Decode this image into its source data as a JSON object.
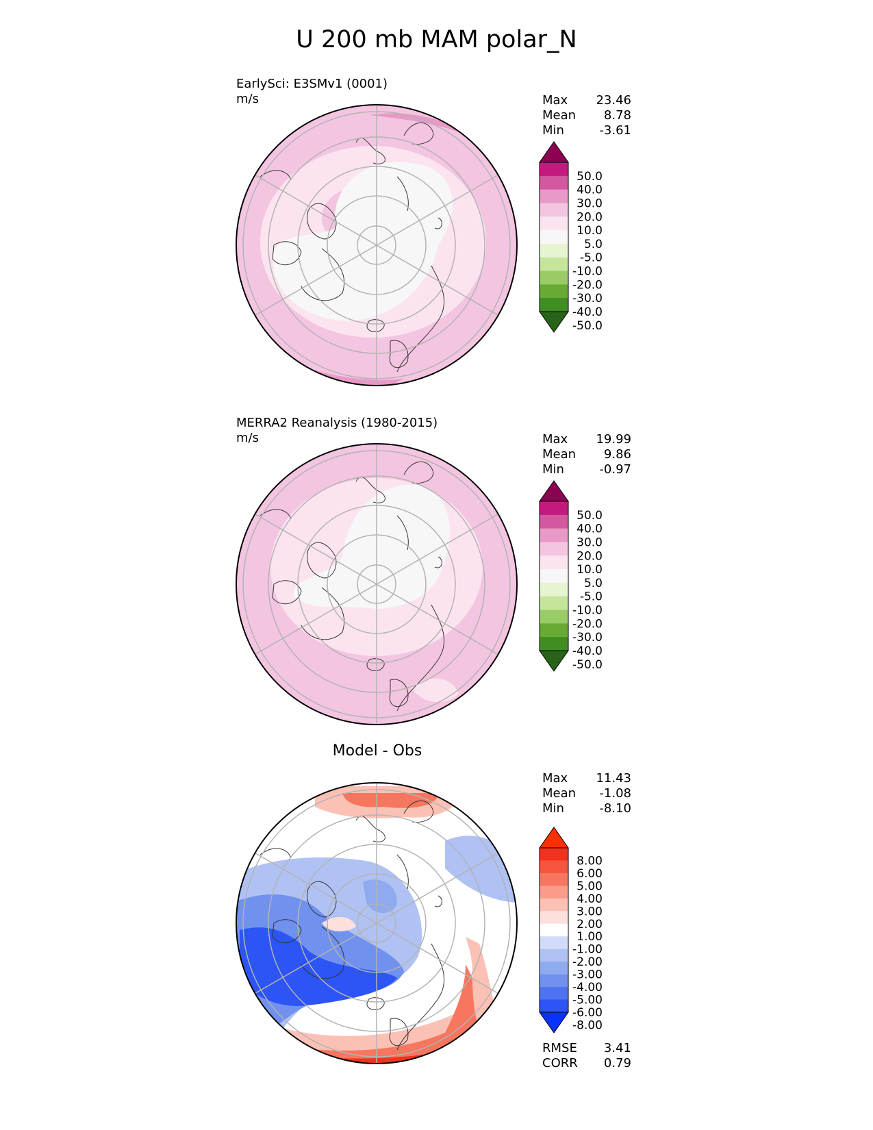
{
  "figure_title": "U 200 mb MAM polar_N",
  "chart_data": [
    {
      "type": "heatmap",
      "projection": "north-polar-stereographic",
      "title": "EarlySci: E3SMv1 (0001)",
      "units": "m/s",
      "stats": {
        "max": "23.46",
        "mean": "8.78",
        "min": "-3.61"
      },
      "colorbar": {
        "extend": "both",
        "levels": [
          "-50.0",
          "-40.0",
          "-30.0",
          "-20.0",
          "-10.0",
          "-5.0",
          "5.0",
          "10.0",
          "20.0",
          "30.0",
          "40.0",
          "50.0"
        ],
        "colors": [
          "#276419",
          "#3f8d23",
          "#68ab34",
          "#99cc66",
          "#c5e59b",
          "#e6f4d1",
          "#f7f7f7",
          "#fbe4f0",
          "#f3c5e0",
          "#e899c7",
          "#d4589f",
          "#c21a7e",
          "#8e0152"
        ]
      }
    },
    {
      "type": "heatmap",
      "projection": "north-polar-stereographic",
      "title": "MERRA2 Reanalysis (1980-2015)",
      "units": "m/s",
      "stats": {
        "max": "19.99",
        "mean": "9.86",
        "min": "-0.97"
      },
      "colorbar": {
        "extend": "both",
        "levels": [
          "-50.0",
          "-40.0",
          "-30.0",
          "-20.0",
          "-10.0",
          "-5.0",
          "5.0",
          "10.0",
          "20.0",
          "30.0",
          "40.0",
          "50.0"
        ],
        "colors": [
          "#276419",
          "#3f8d23",
          "#68ab34",
          "#99cc66",
          "#c5e59b",
          "#e6f4d1",
          "#f7f7f7",
          "#fbe4f0",
          "#f3c5e0",
          "#e899c7",
          "#d4589f",
          "#c21a7e",
          "#8e0152"
        ]
      }
    },
    {
      "type": "heatmap",
      "projection": "north-polar-stereographic",
      "title": "Model - Obs",
      "units": "",
      "stats": {
        "max": "11.43",
        "mean": "-1.08",
        "min": "-8.10"
      },
      "metrics": {
        "rmse": "3.41",
        "corr": "0.79"
      },
      "colorbar": {
        "extend": "both",
        "levels": [
          "-8.00",
          "-6.00",
          "-5.00",
          "-4.00",
          "-3.00",
          "-2.00",
          "-1.00",
          "1.00",
          "2.00",
          "3.00",
          "4.00",
          "5.00",
          "6.00",
          "8.00"
        ],
        "colors": [
          "#0a32ff",
          "#2d55f5",
          "#4f73f0",
          "#7091ee",
          "#90aaf0",
          "#b0c2f4",
          "#d2dcfa",
          "#ffffff",
          "#fde0dc",
          "#fbc1b5",
          "#fa9c89",
          "#f7765f",
          "#f5553c",
          "#f0321e",
          "#ff3000"
        ]
      }
    }
  ],
  "labels": {
    "max": "Max",
    "mean": "Mean",
    "min": "Min",
    "rmse": "RMSE",
    "corr": "CORR"
  }
}
